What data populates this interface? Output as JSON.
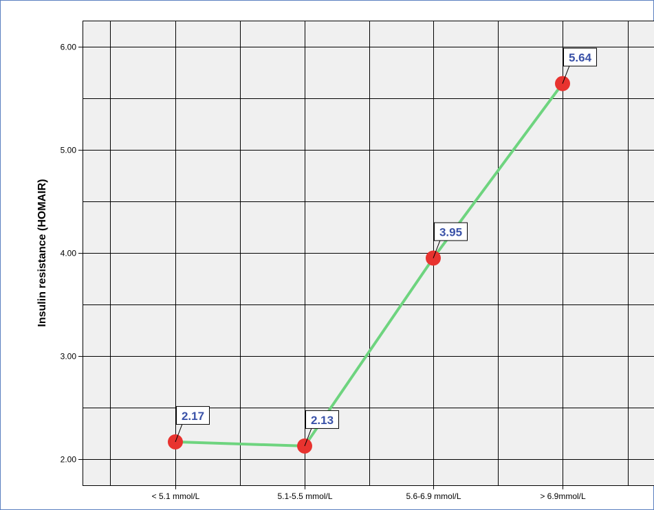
{
  "chart_data": {
    "type": "line",
    "title": "",
    "xlabel": "",
    "ylabel": "Insulin resistance (HOMAIR)",
    "categories": [
      "< 5.1 mmol/L",
      "5.1-5.5 mmol/L",
      "5.6-6.9 mmol/L",
      "> 6.9mmol/L"
    ],
    "series": [
      {
        "values": [
          2.17,
          2.13,
          3.95,
          5.64
        ],
        "data_labels": [
          "2.17",
          "2.13",
          "3.95",
          "5.64"
        ]
      }
    ],
    "y_ticks": [
      "2.00",
      "3.00",
      "4.00",
      "5.00",
      "6.00"
    ],
    "ylim": [
      1.75,
      6.25
    ],
    "grid": true,
    "colors": {
      "line": "#6ed47f",
      "marker": "#e8332f",
      "plot_background": "#f0f0f0",
      "grid": "#000000",
      "label_text": "#3a52a8",
      "frame": "#5a7fc0"
    }
  }
}
